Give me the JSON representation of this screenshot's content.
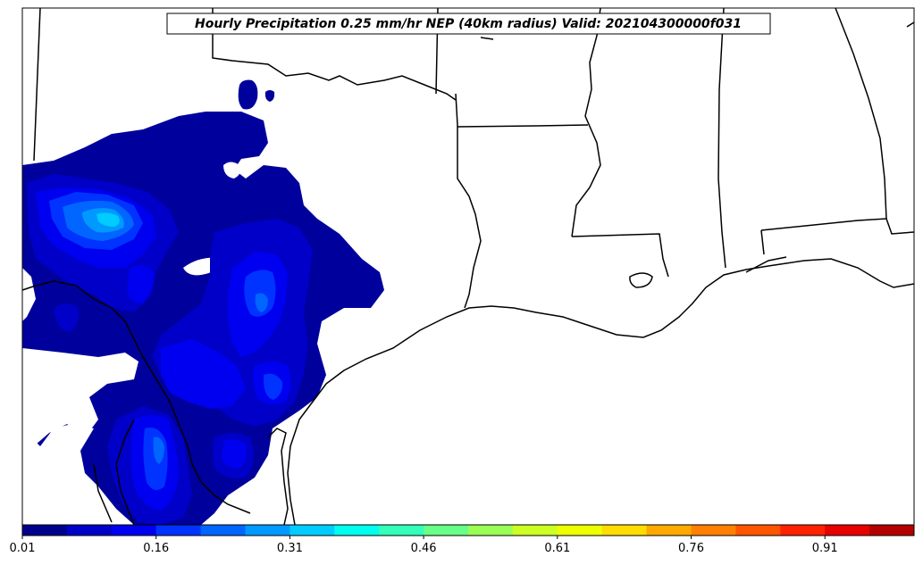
{
  "map": {
    "title": "Hourly Precipitation 0.25 mm/hr NEP (40km radius) Valid: 202104300000f031"
  },
  "colorbar": {
    "ticks": [
      "0.01",
      "0.16",
      "0.31",
      "0.46",
      "0.61",
      "0.76",
      "0.91"
    ],
    "colors": [
      "#00008c",
      "#0000c8",
      "#0000f0",
      "#0033ff",
      "#0066ff",
      "#0099ff",
      "#00ccff",
      "#00ffee",
      "#33ffbb",
      "#66ff88",
      "#99ff55",
      "#ccff22",
      "#eeff00",
      "#ffdd00",
      "#ffaa00",
      "#ff8000",
      "#ff5500",
      "#ff2200",
      "#e60000",
      "#b30000"
    ]
  }
}
